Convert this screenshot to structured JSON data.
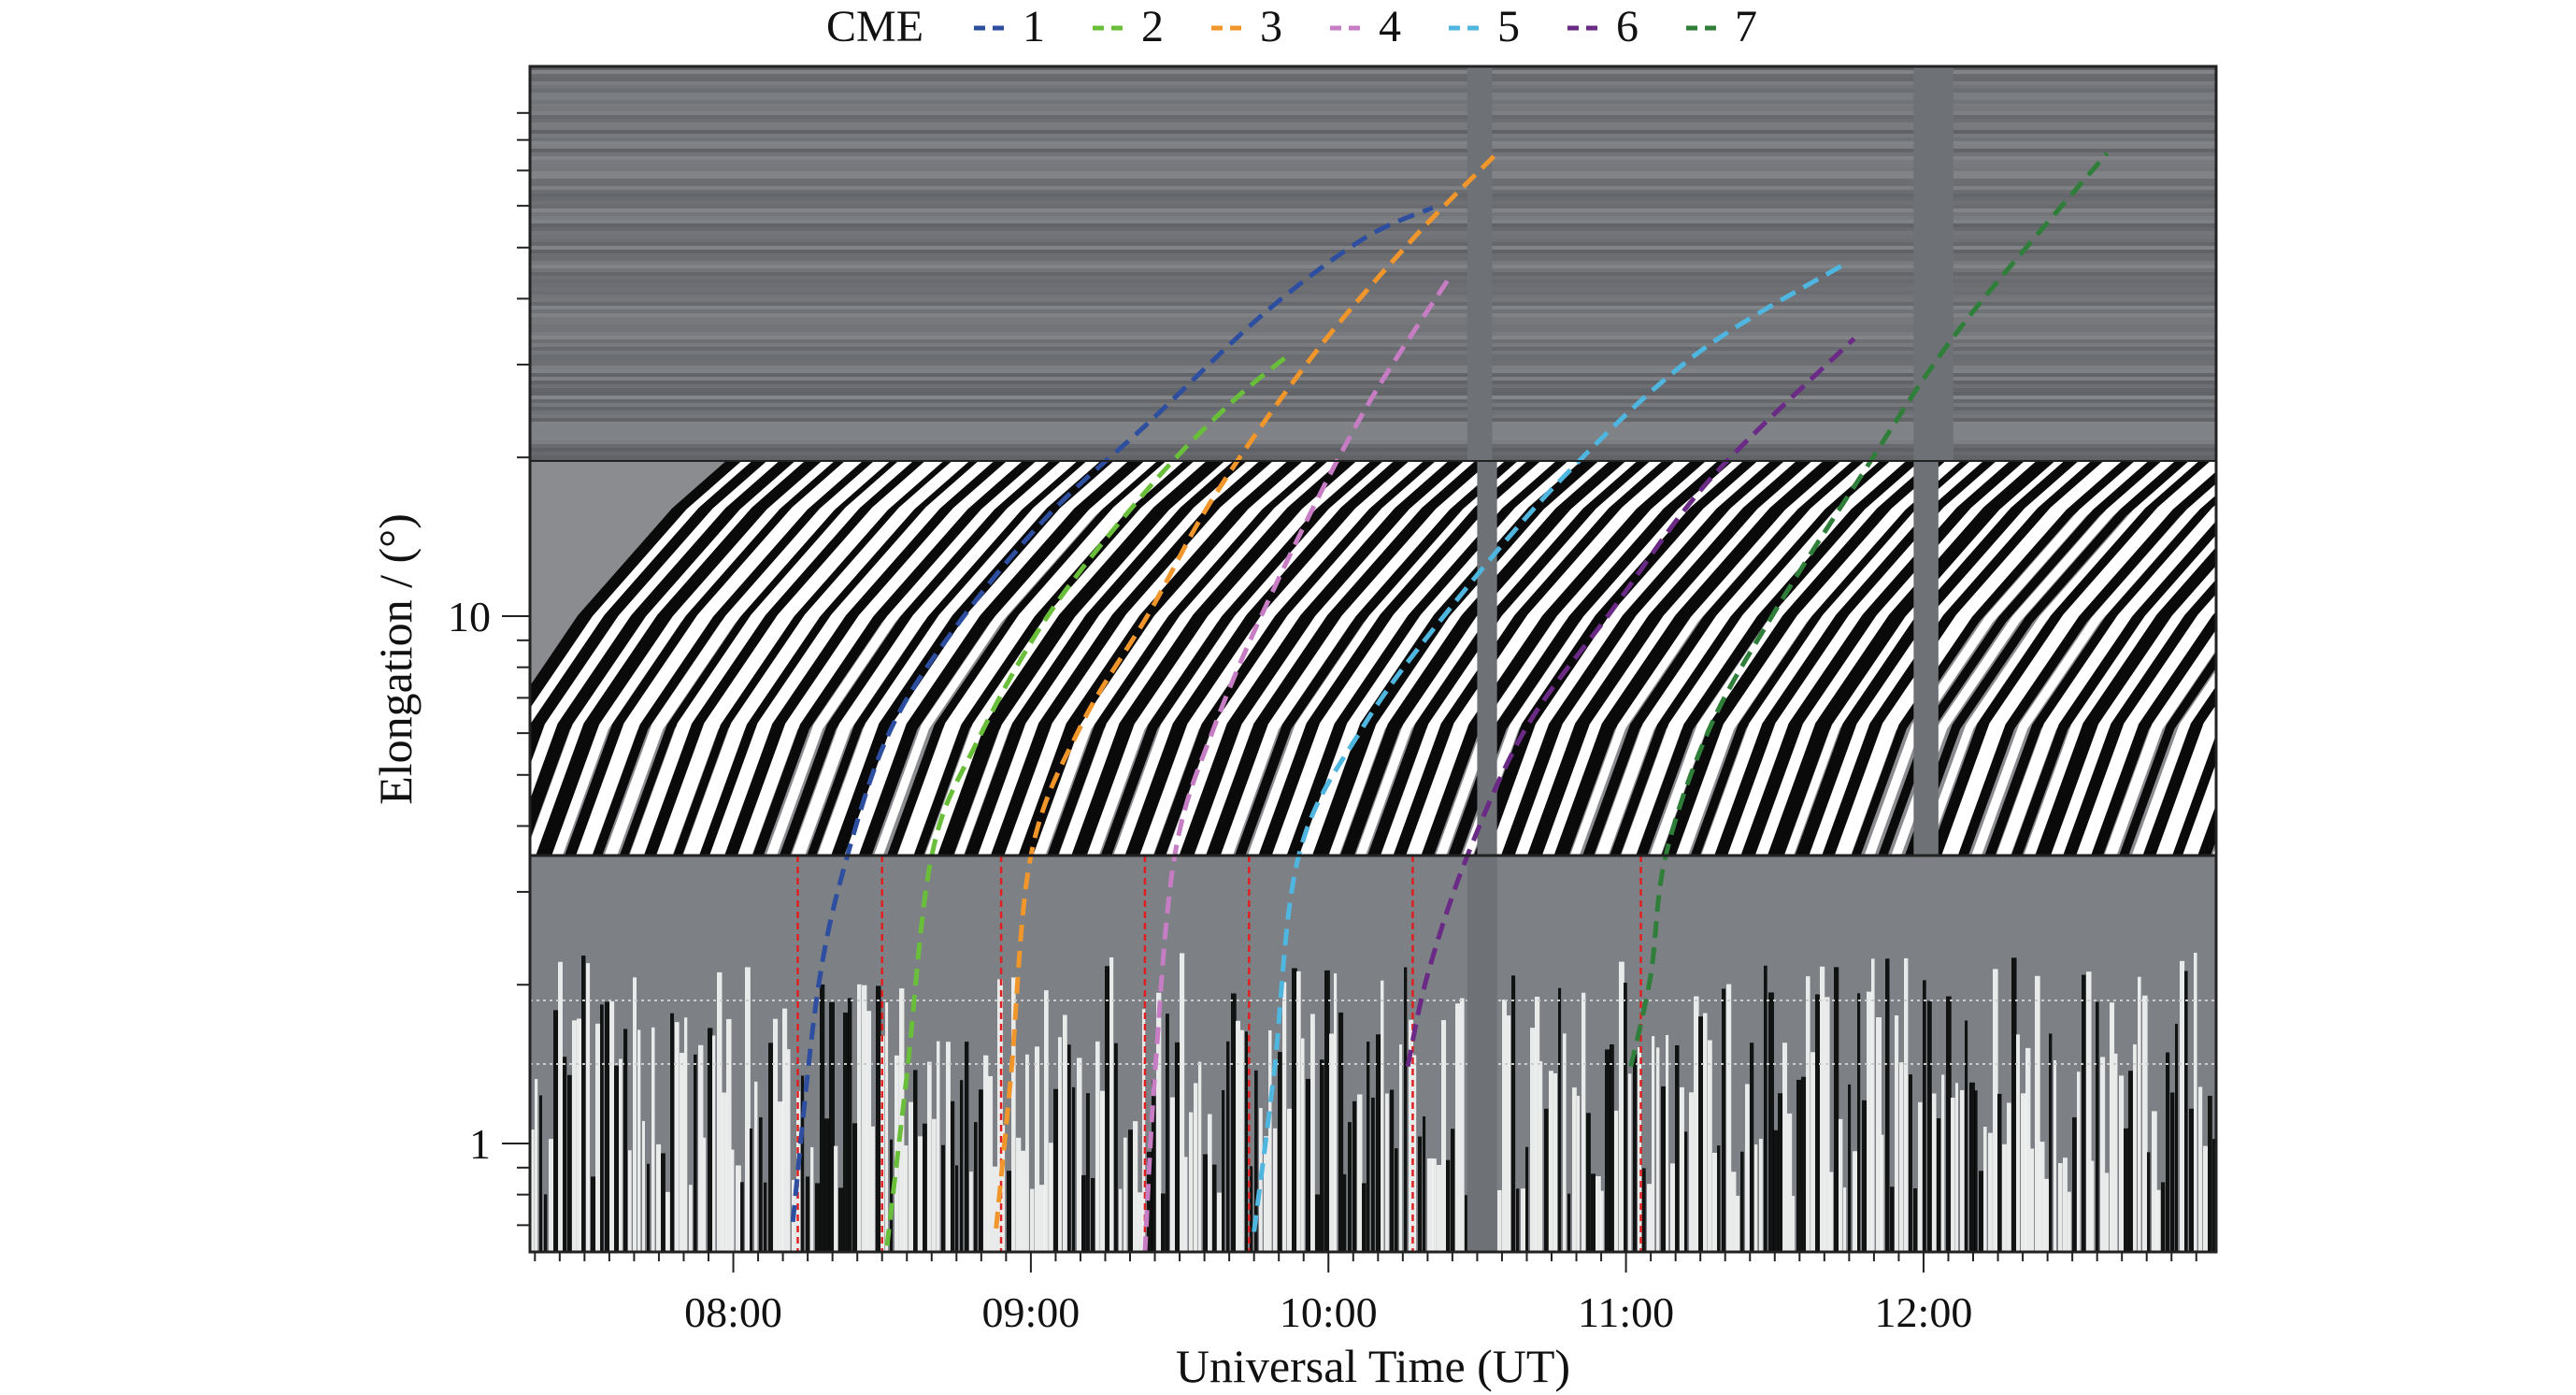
{
  "chart_data": {
    "type": "line",
    "xlabel": "Universal Time (UT)",
    "ylabel": "Elongation / (°)",
    "x_scale": "time",
    "y_scale": "log",
    "xlim": [
      "07:19",
      "12:59"
    ],
    "ylim": [
      0.62,
      110
    ],
    "x_ticks": [
      "08:00",
      "09:00",
      "10:00",
      "11:00",
      "12:00"
    ],
    "y_ticks": [
      {
        "value": 1,
        "label": "1"
      },
      {
        "value": 10,
        "label": "10"
      }
    ],
    "panel_boundaries_elongation": [
      3.5,
      19.5
    ],
    "legend": {
      "title": "CME",
      "placement": "top-outside"
    },
    "series": [
      {
        "name": "1",
        "color": "#2e4fa0",
        "style": "dashed",
        "points": [
          [
            "08:12",
            0.71
          ],
          [
            "08:17",
            1.94
          ],
          [
            "08:23",
            3.51
          ],
          [
            "08:32",
            6.17
          ],
          [
            "08:46",
            9.86
          ],
          [
            "09:04",
            15.7
          ],
          [
            "09:24",
            23.4
          ],
          [
            "09:47",
            37.5
          ],
          [
            "10:07",
            51.9
          ],
          [
            "10:21",
            59.5
          ]
        ]
      },
      {
        "name": "2",
        "color": "#6abf3a",
        "style": "dashed",
        "points": [
          [
            "08:31",
            0.64
          ],
          [
            "08:35",
            1.35
          ],
          [
            "08:40",
            3.51
          ],
          [
            "08:49",
            5.74
          ],
          [
            "09:04",
            10.2
          ],
          [
            "09:24",
            17.6
          ],
          [
            "09:40",
            25.2
          ],
          [
            "09:52",
            31.3
          ]
        ]
      },
      {
        "name": "3",
        "color": "#f0962a",
        "style": "dashed",
        "points": [
          [
            "08:53",
            0.69
          ],
          [
            "08:56",
            1.35
          ],
          [
            "09:00",
            3.51
          ],
          [
            "09:10",
            6.17
          ],
          [
            "09:24",
            10.2
          ],
          [
            "09:37",
            16.9
          ],
          [
            "09:57",
            31.3
          ],
          [
            "10:17",
            51.9
          ],
          [
            "10:34",
            75.5
          ]
        ]
      },
      {
        "name": "4",
        "color": "#c77dc4",
        "style": "dashed",
        "points": [
          [
            "09:23",
            0.62
          ],
          [
            "09:25",
            1.35
          ],
          [
            "09:29",
            3.51
          ],
          [
            "09:37",
            6.17
          ],
          [
            "09:50",
            11.8
          ],
          [
            "10:07",
            24.3
          ],
          [
            "10:24",
            43.3
          ]
        ]
      },
      {
        "name": "5",
        "color": "#4fb6e0",
        "style": "dashed",
        "points": [
          [
            "09:45",
            0.68
          ],
          [
            "09:49",
            1.35
          ],
          [
            "09:54",
            3.51
          ],
          [
            "10:07",
            6.17
          ],
          [
            "10:24",
            10.2
          ],
          [
            "10:47",
            18.2
          ],
          [
            "11:14",
            31.3
          ],
          [
            "11:44",
            46.5
          ]
        ]
      },
      {
        "name": "6",
        "color": "#6a2a86",
        "style": "dashed",
        "points": [
          [
            "10:16",
            1.4
          ],
          [
            "10:20",
            2.09
          ],
          [
            "10:28",
            3.51
          ],
          [
            "10:40",
            6.17
          ],
          [
            "10:57",
            10.2
          ],
          [
            "11:17",
            18.2
          ],
          [
            "11:46",
            33.6
          ]
        ]
      },
      {
        "name": "7",
        "color": "#2f7f3a",
        "style": "dashed",
        "points": [
          [
            "11:01",
            1.4
          ],
          [
            "11:05",
            2.09
          ],
          [
            "11:08",
            3.51
          ],
          [
            "11:17",
            6.17
          ],
          [
            "11:30",
            10.2
          ],
          [
            "11:47",
            18.2
          ],
          [
            "12:07",
            34.8
          ],
          [
            "12:37",
            75.5
          ]
        ]
      }
    ],
    "vertical_markers": {
      "color": "#e02020",
      "style": "dotted",
      "times": [
        "08:13",
        "08:30",
        "08:54",
        "09:23",
        "09:44",
        "10:17",
        "11:03"
      ]
    },
    "data_gaps": [
      {
        "panel": "top",
        "from": "10:28",
        "to": "10:33"
      },
      {
        "panel": "top",
        "from": "11:58",
        "to": "12:06"
      },
      {
        "panel": "middle",
        "from": "10:30",
        "to": "10:34"
      },
      {
        "panel": "middle",
        "from": "11:58",
        "to": "12:03"
      },
      {
        "panel": "bottom",
        "from": "10:28",
        "to": "10:34"
      }
    ]
  }
}
